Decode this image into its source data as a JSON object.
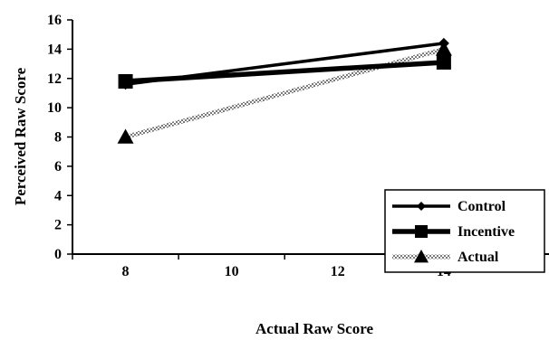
{
  "chart_data": {
    "type": "line",
    "x": [
      8,
      14
    ],
    "xlabel": "Actual Raw Score",
    "ylabel": "Perceived Raw Score",
    "x_ticks": [
      8,
      10,
      12,
      14
    ],
    "y_ticks": [
      0,
      2,
      4,
      6,
      8,
      10,
      12,
      14,
      16
    ],
    "xlim": [
      7,
      16
    ],
    "ylim": [
      0,
      16
    ],
    "grid": false,
    "legend_position": "bottom-right",
    "series": [
      {
        "name": "Control",
        "values": [
          11.6,
          14.4
        ],
        "marker": "diamond",
        "color": "#000000",
        "style": "solid"
      },
      {
        "name": "Incentive",
        "values": [
          11.8,
          13.1
        ],
        "marker": "square",
        "color": "#000000",
        "style": "solid-thick"
      },
      {
        "name": "Actual",
        "values": [
          8.0,
          14.0
        ],
        "marker": "triangle",
        "color": "#8c8c8c",
        "style": "hatched"
      }
    ]
  }
}
